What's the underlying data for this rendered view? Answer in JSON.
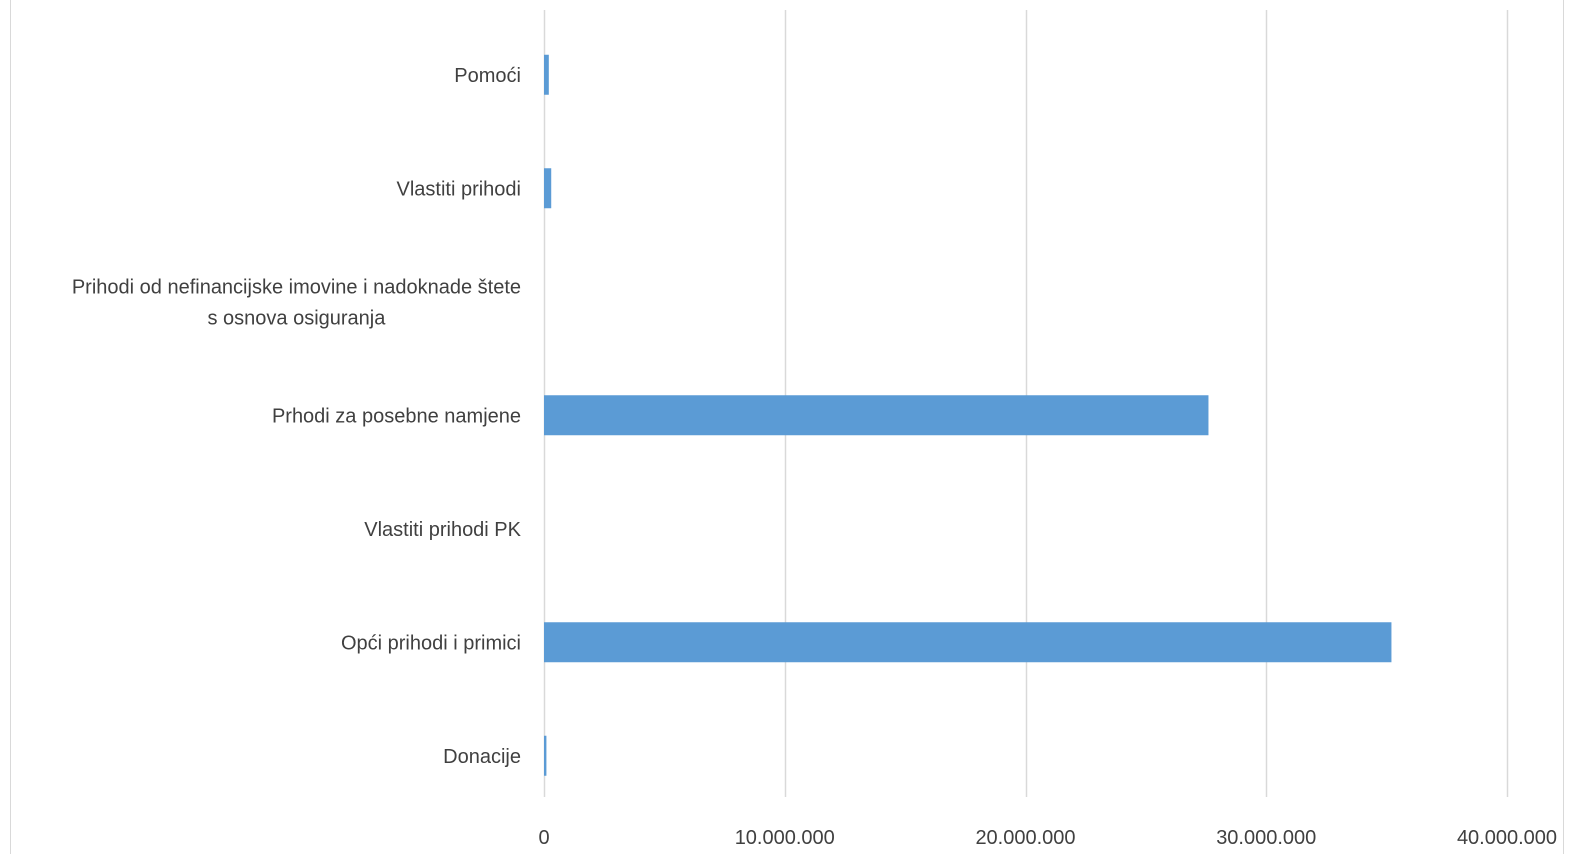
{
  "colors": {
    "bar": "#5B9BD5",
    "grid": "#D9D9D9",
    "text": "#404040",
    "frame": "#D9D9D9"
  },
  "chart_data": {
    "type": "bar",
    "orientation": "horizontal",
    "title": "",
    "xlabel": "",
    "ylabel": "",
    "xlim": [
      0,
      40000000
    ],
    "grid": true,
    "legend": "none",
    "categories": [
      "Pomoći",
      "Vlastiti prihodi",
      "Prihodi od nefinancijske imovine i nadoknade štete s osnova osiguranja",
      "Prhodi za posebne namjene",
      "Vlastiti prihodi PK",
      "Opći prihodi i primici",
      "Donacije"
    ],
    "category_label_lines": [
      [
        "Pomoći"
      ],
      [
        "Vlastiti prihodi"
      ],
      [
        "Prihodi od nefinancijske imovine i nadoknade štete",
        "s osnova osiguranja"
      ],
      [
        "Prhodi za posebne namjene"
      ],
      [
        "Vlastiti prihodi PK"
      ],
      [
        "Opći prihodi i primici"
      ],
      [
        "Donacije"
      ]
    ],
    "values": [
      200000,
      300000,
      0,
      27600000,
      0,
      35200000,
      100000
    ],
    "ticks": [
      0,
      10000000,
      20000000,
      30000000,
      40000000
    ],
    "tick_labels": [
      "0",
      "10.000.000",
      "20.000.000",
      "30.000.000",
      "40.000.000"
    ]
  }
}
